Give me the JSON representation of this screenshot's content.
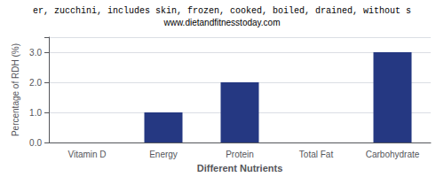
{
  "chart_data": {
    "type": "bar",
    "title": "er, zucchini, includes skin, frozen, cooked, boiled, drained, without s",
    "subtitle": "www.dietandfitnesstoday.com",
    "categories": [
      "Vitamin D",
      "Energy",
      "Protein",
      "Total Fat",
      "Carbohydrate"
    ],
    "values": [
      0.0,
      1.0,
      2.0,
      0.0,
      3.0
    ],
    "color": "#253882",
    "xlabel": "Different Nutrients",
    "ylabel": "Percentage of RDH (%)",
    "ylim": [
      0,
      3.5
    ],
    "yticks": [
      {
        "value": 0.0,
        "label": "0.0"
      },
      {
        "value": 1.0,
        "label": "1.0"
      },
      {
        "value": 2.0,
        "label": "2.0"
      },
      {
        "value": 3.0,
        "label": "3.0"
      }
    ],
    "grid": true
  }
}
